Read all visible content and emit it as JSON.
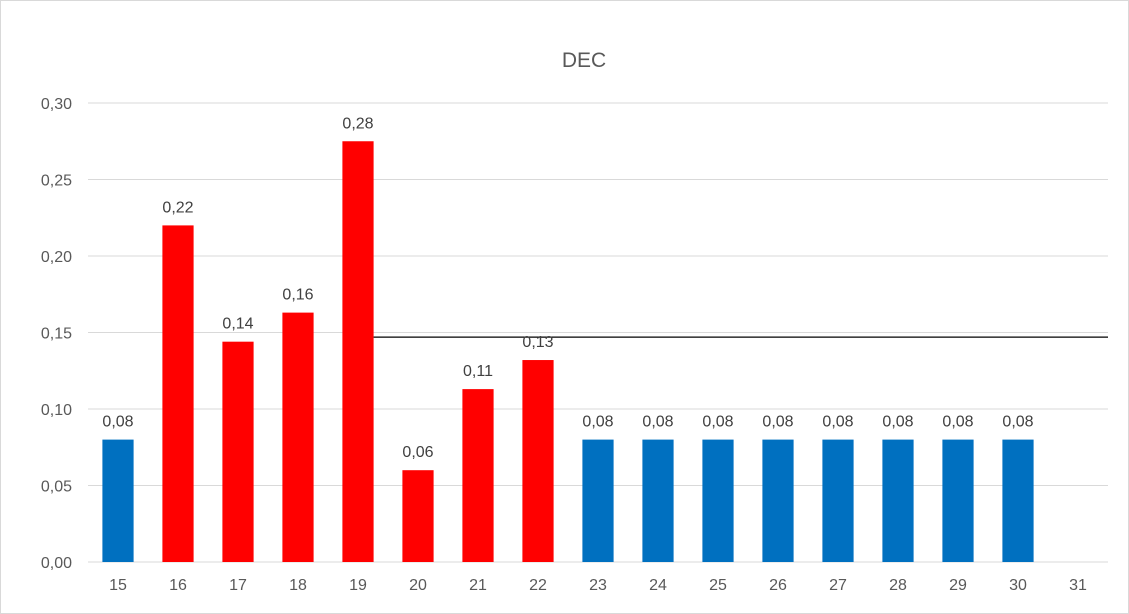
{
  "chart_data": {
    "type": "bar",
    "title": "DEC",
    "xlabel": "",
    "ylabel": "",
    "ylim": [
      0,
      0.3
    ],
    "yticks": [
      0,
      0.05,
      0.1,
      0.15,
      0.2,
      0.25,
      0.3
    ],
    "ytick_labels": [
      "0,00",
      "0,05",
      "0,10",
      "0,15",
      "0,20",
      "0,25",
      "0,30"
    ],
    "grid": true,
    "legend": "none",
    "categories": [
      "15",
      "16",
      "17",
      "18",
      "19",
      "20",
      "21",
      "22",
      "23",
      "24",
      "25",
      "26",
      "27",
      "28",
      "29",
      "30",
      "31"
    ],
    "values": [
      0.08,
      0.22,
      0.144,
      0.163,
      0.275,
      0.06,
      0.113,
      0.132,
      0.08,
      0.08,
      0.08,
      0.08,
      0.08,
      0.08,
      0.08,
      0.08,
      null
    ],
    "value_labels": [
      "0,08",
      "0,22",
      "0,14",
      "0,16",
      "0,28",
      "0,06",
      "0,11",
      "0,13",
      "0,08",
      "0,08",
      "0,08",
      "0,08",
      "0,08",
      "0,08",
      "0,08",
      "0,08",
      ""
    ],
    "bar_colors": [
      "#0070c0",
      "#ff0000",
      "#ff0000",
      "#ff0000",
      "#ff0000",
      "#ff0000",
      "#ff0000",
      "#ff0000",
      "#0070c0",
      "#0070c0",
      "#0070c0",
      "#0070c0",
      "#0070c0",
      "#0070c0",
      "#0070c0",
      "#0070c0",
      "#0070c0"
    ],
    "reference_line": {
      "value": 0.147,
      "from_category": "19",
      "color": "#000000"
    }
  }
}
